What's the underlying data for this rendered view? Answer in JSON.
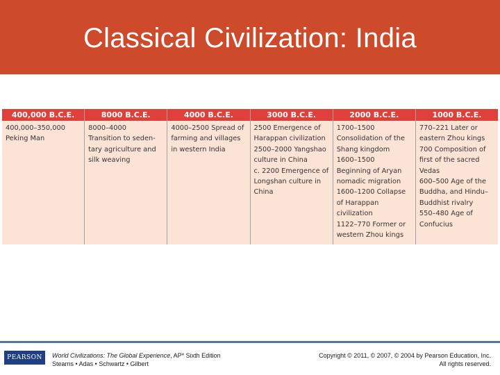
{
  "slide": {
    "title": "Classical Civilization: India"
  },
  "timeline": {
    "columns": [
      {
        "header": "400,000 B.C.E.",
        "entries": [
          "400,000–350,000",
          "Peking Man"
        ]
      },
      {
        "header": "8000 B.C.E.",
        "entries": [
          "8000–4000",
          "Transition to seden-",
          "tary agriculture and",
          "silk weaving"
        ]
      },
      {
        "header": "4000 B.C.E.",
        "entries": [
          "4000–2500 Spread of",
          "farming and villages",
          "in western India"
        ]
      },
      {
        "header": "3000 B.C.E.",
        "entries": [
          "2500 Emergence of",
          "Harappan civilization",
          "2500–2000 Yangshao",
          "culture in China",
          "c. 2200 Emergence of",
          "Longshan culture in",
          "China"
        ]
      },
      {
        "header": "2000 B.C.E.",
        "entries": [
          "1700–1500",
          "Consolidation of the",
          "Shang kingdom",
          "1600–1500",
          "Beginning of Aryan",
          "nomadic migration",
          "1600–1200 Collapse",
          "of Harappan",
          "civilization",
          "1122–770 Former or",
          "western Zhou kings"
        ]
      },
      {
        "header": "1000 B.C.E.",
        "entries": [
          "770–221 Later or",
          "eastern Zhou kings",
          "700 Composition of",
          "first of the sacred",
          "Vedas",
          "600–500 Age of the",
          "Buddha, and Hindu–",
          "Buddhist rivalry",
          "550–480 Age of",
          "Confucius"
        ]
      }
    ]
  },
  "footer": {
    "logo_text": "PEARSON",
    "book_title": "World Civilizations: The Global Experience",
    "book_edition": ", AP* Sixth Edition",
    "authors": "Stearns • Adas • Schwartz • Gilbert",
    "copyright": "Copyright © 2011, © 2007, © 2004 by Pearson Education, Inc.",
    "rights": "All rights reserved."
  },
  "colors": {
    "title_bar": "#cd4a2a",
    "table_header": "#e0403a",
    "table_body": "#fbe3d6",
    "footer_rule": "#4f76a8",
    "logo_bg": "#1f3f82"
  }
}
